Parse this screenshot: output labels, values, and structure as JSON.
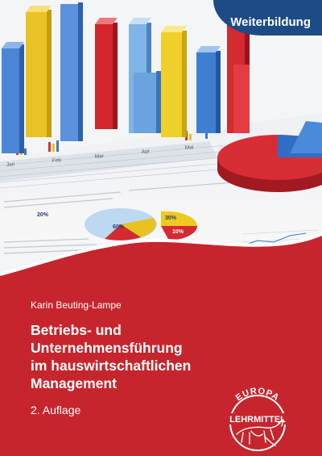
{
  "cover": {
    "series_badge": "Weiterbildung",
    "author": "Karin Beuting-Lampe",
    "title_lines": [
      "Betriebs- und",
      "Unternehmensführung",
      "im hauswirtschaftlichen",
      "Management"
    ],
    "edition": "2. Auflage",
    "publisher_logo": {
      "top_text": "EUROPA",
      "bottom_text": "LEHRMITTEL",
      "icon": "europa-bull-logo-icon"
    },
    "illustration": {
      "icon": "business-charts-illustration",
      "pie_labels": [
        "20%",
        "60%",
        "30%",
        "10%"
      ],
      "month_labels": [
        "Jan",
        "Feb",
        "Mar",
        "Apr",
        "Mai"
      ]
    },
    "colors": {
      "background_red": "#c7252d",
      "badge_blue": "#1d4b86",
      "text_white": "#ffffff"
    }
  }
}
